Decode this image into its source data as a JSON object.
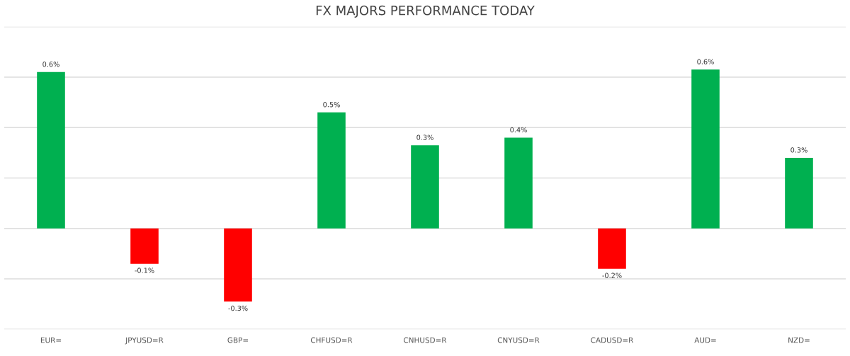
{
  "chart_data": {
    "type": "bar",
    "title": "FX MAJORS PERFORMANCE TODAY",
    "categories": [
      "EUR=",
      "JPYUSD=R",
      "GBP=",
      "CHFUSD=R",
      "CNHUSD=R",
      "CNYUSD=R",
      "CADUSD=R",
      "AUD=",
      "NZD="
    ],
    "values": [
      0.62,
      -0.14,
      -0.29,
      0.46,
      0.33,
      0.36,
      -0.16,
      0.63,
      0.28
    ],
    "value_labels": [
      "0.6%",
      "-0.1%",
      "-0.3%",
      "0.5%",
      "0.3%",
      "0.4%",
      "-0.2%",
      "0.6%",
      "0.3%"
    ],
    "colors": [
      "#00b050",
      "#ff0000",
      "#ff0000",
      "#00b050",
      "#00b050",
      "#00b050",
      "#ff0000",
      "#00b050",
      "#00b050"
    ],
    "ylim": [
      -0.4,
      0.8
    ],
    "yticks": [
      {
        "value": -0.4,
        "label": null
      },
      {
        "value": -0.2,
        "label": null
      },
      {
        "value": 0,
        "label": null
      },
      {
        "value": 0.2,
        "label": null
      },
      {
        "value": 0.4,
        "label": null
      },
      {
        "value": 0.6,
        "label": null
      },
      {
        "value": 0.8,
        "label": null
      }
    ],
    "tick_labels": "x",
    "grid": "y"
  }
}
